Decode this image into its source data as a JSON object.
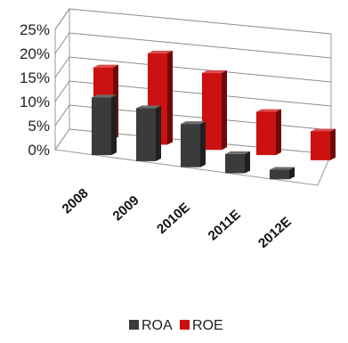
{
  "chart_data": {
    "type": "bar",
    "categories": [
      "2008",
      "2009",
      "2010E",
      "2011E",
      "2012E"
    ],
    "series": [
      {
        "name": "ROA",
        "values": [
          12,
          11,
          9,
          4,
          2
        ]
      },
      {
        "name": "ROE",
        "values": [
          15,
          19,
          16,
          9,
          6
        ]
      }
    ],
    "y_ticks": [
      "0%",
      "5%",
      "10%",
      "15%",
      "20%",
      "25%"
    ],
    "ylim": [
      0,
      25
    ],
    "grid": true,
    "legend": "bottom",
    "colors": {
      "ROA": "#3b3b3b",
      "ROE": "#cc1111"
    },
    "style": "3d-clustered-column"
  }
}
